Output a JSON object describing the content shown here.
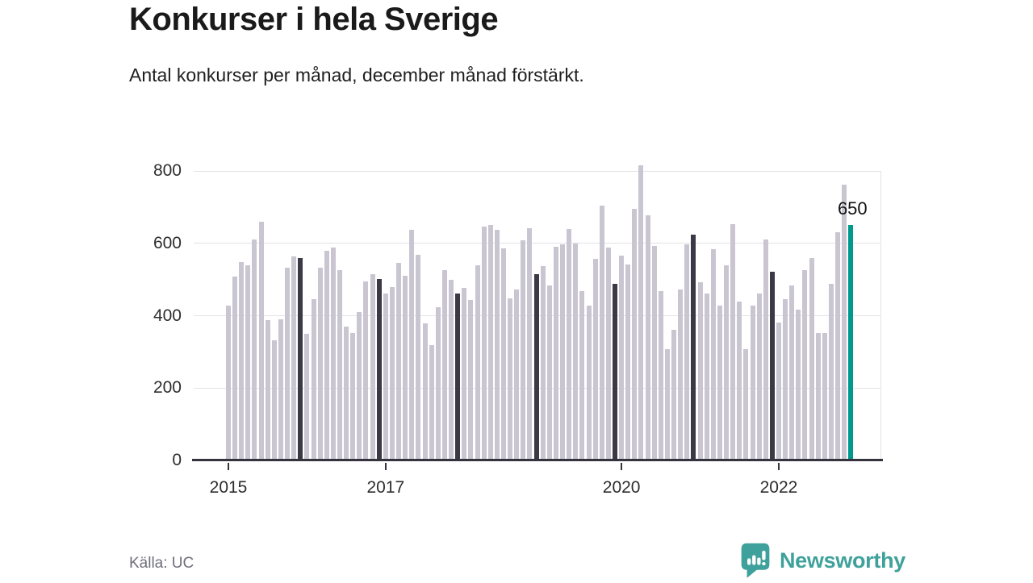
{
  "header": {
    "title": "Konkurser i hela Sverige",
    "subtitle": "Antal konkurser per månad, december månad förstärkt."
  },
  "footer": {
    "source": "Källa: UC",
    "brand_name": "Newsworthy",
    "brand_icon": "newsworthy-speech-bubble-bar-chart-icon"
  },
  "colors": {
    "bar_default": "#c9c6d1",
    "bar_december": "#3b3946",
    "bar_highlight": "#00998e",
    "gridline": "#e3e3e7",
    "axis": "#35343e",
    "brand_teal": "#3fa19b",
    "annotation_text": "#111111"
  },
  "chart_data": {
    "type": "bar",
    "title": "Konkurser i hela Sverige",
    "subtitle": "Antal konkurser per månad, december månad förstärkt.",
    "x_unit": "month",
    "x_start": "2015-01",
    "x_end": "2022-12",
    "grid": "horizontal",
    "ylim": [
      0,
      800
    ],
    "yticks": [
      0,
      200,
      400,
      600,
      800
    ],
    "xticks": [
      {
        "label": "2015",
        "month_index": 0
      },
      {
        "label": "2017",
        "month_index": 24
      },
      {
        "label": "2020",
        "month_index": 60
      },
      {
        "label": "2022",
        "month_index": 84
      }
    ],
    "december_highlighted": true,
    "annotation": {
      "label": "650",
      "month": "2022-12"
    },
    "final_bar": {
      "month": "2022-12",
      "value": 650
    },
    "series_by_year": [
      {
        "year": 2015,
        "values": [
          428,
          509,
          549,
          540,
          610,
          659,
          387,
          331,
          390,
          532,
          564,
          560
        ]
      },
      {
        "year": 2016,
        "values": [
          349,
          446,
          532,
          580,
          589,
          526,
          369,
          352,
          409,
          494,
          515,
          502
        ]
      },
      {
        "year": 2017,
        "values": [
          462,
          480,
          545,
          511,
          637,
          568,
          379,
          318,
          423,
          527,
          499,
          462
        ]
      },
      {
        "year": 2018,
        "values": [
          478,
          443,
          540,
          647,
          651,
          638,
          585,
          448,
          472,
          609,
          641,
          515
        ]
      },
      {
        "year": 2019,
        "values": [
          536,
          484,
          591,
          598,
          639,
          600,
          469,
          427,
          558,
          705,
          589,
          489
        ]
      },
      {
        "year": 2020,
        "values": [
          566,
          542,
          696,
          816,
          678,
          592,
          468,
          308,
          360,
          473,
          598,
          624
        ]
      },
      {
        "year": 2021,
        "values": [
          492,
          461,
          583,
          427,
          539,
          652,
          440,
          308,
          429,
          461,
          611,
          522
        ]
      },
      {
        "year": 2022,
        "values": [
          380,
          446,
          483,
          416,
          526,
          559,
          353,
          353,
          487,
          631,
          763,
          650
        ]
      }
    ]
  }
}
